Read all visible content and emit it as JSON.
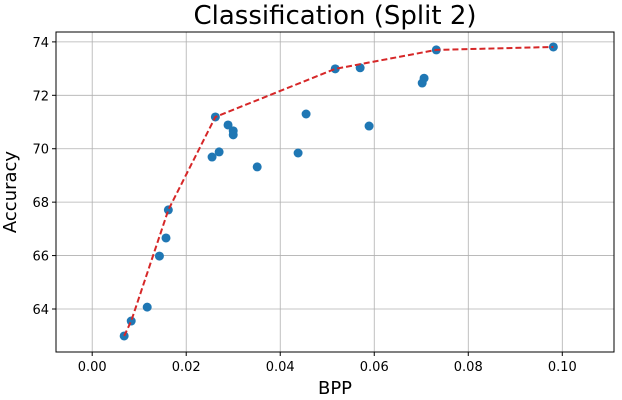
{
  "chart_data": {
    "type": "scatter",
    "title": "Classification (Split 2)",
    "xlabel": "BPP",
    "ylabel": "Accuracy",
    "xlim": [
      -0.0077,
      0.111
    ],
    "ylim": [
      62.39,
      74.37
    ],
    "xticks": [
      {
        "value": 0,
        "label": "0.00"
      },
      {
        "value": 0.02,
        "label": "0.02"
      },
      {
        "value": 0.04,
        "label": "0.04"
      },
      {
        "value": 0.06,
        "label": "0.06"
      },
      {
        "value": 0.08,
        "label": "0.08"
      },
      {
        "value": 0.1,
        "label": "0.10"
      }
    ],
    "yticks": [
      64,
      66,
      68,
      70,
      72,
      74
    ],
    "grid": true,
    "series": [
      {
        "type": "scatter",
        "color": "#1f77b4",
        "x": [
          0.0068,
          0.0083,
          0.0117,
          0.0143,
          0.0157,
          0.0162,
          0.0255,
          0.027,
          0.0262,
          0.0289,
          0.03,
          0.03,
          0.0351,
          0.0438,
          0.0455,
          0.0517,
          0.057,
          0.0589,
          0.0702,
          0.0706,
          0.0732,
          0.0981
        ],
        "values": [
          62.99,
          63.55,
          64.07,
          65.98,
          66.66,
          67.71,
          69.69,
          69.88,
          71.19,
          70.89,
          70.67,
          70.52,
          69.32,
          69.84,
          71.3,
          72.99,
          73.03,
          70.85,
          72.46,
          72.64,
          73.7,
          73.81
        ]
      },
      {
        "type": "line",
        "color": "#d62728",
        "dashed": true,
        "x": [
          0.0068,
          0.0083,
          0.0162,
          0.0262,
          0.0517,
          0.0732,
          0.0981
        ],
        "values": [
          62.99,
          63.55,
          67.71,
          71.19,
          72.99,
          73.7,
          73.81
        ]
      }
    ]
  }
}
